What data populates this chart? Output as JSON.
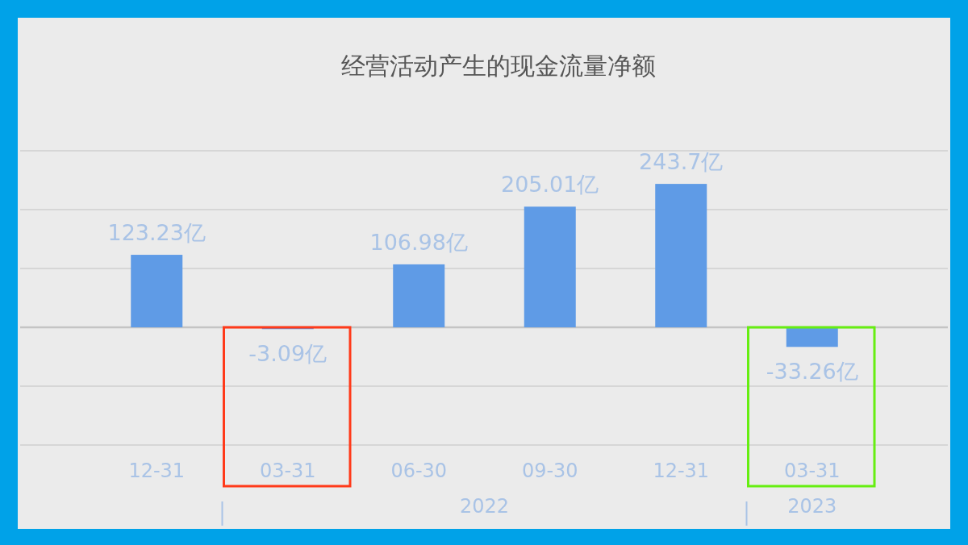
{
  "chart_data": {
    "type": "bar",
    "title": "经营活动产生的现金流量净额",
    "categories": [
      "12-31",
      "03-31",
      "06-30",
      "09-30",
      "12-31",
      "03-31"
    ],
    "values": [
      123.23,
      -3.09,
      106.98,
      205.01,
      243.7,
      -33.26
    ],
    "value_labels": [
      "123.23亿",
      "-3.09亿",
      "106.98亿",
      "205.01亿",
      "243.7亿",
      "-33.26亿"
    ],
    "color": "#5f9be6",
    "ylim": [
      -200,
      300
    ],
    "yticks": [
      {
        "value": -200,
        "label": null
      },
      {
        "value": -100,
        "label": null
      },
      {
        "value": 0,
        "label": null
      },
      {
        "value": 100,
        "label": null
      },
      {
        "value": 200,
        "label": null
      },
      {
        "value": 300,
        "label": null
      }
    ],
    "grid": "y",
    "tick_labels": "x",
    "annotations": [
      "2022",
      "2023"
    ]
  }
}
